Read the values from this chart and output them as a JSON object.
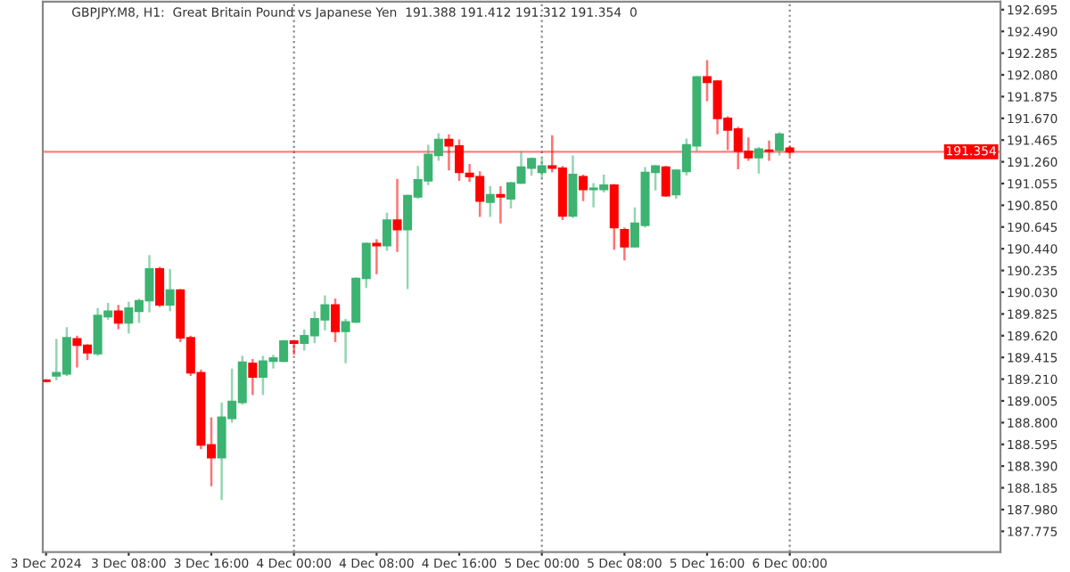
{
  "chart_data": {
    "type": "candlestick",
    "title": "GBPJPY.M8, H1:  Great Britain Pound vs Japanese Yen  191.388 191.412 191.312 191.354  0",
    "x": [
      "2024-12-03T00:00",
      "2024-12-03T01:00",
      "2024-12-03T02:00",
      "2024-12-03T03:00",
      "2024-12-03T04:00",
      "2024-12-03T05:00",
      "2024-12-03T06:00",
      "2024-12-03T07:00",
      "2024-12-03T08:00",
      "2024-12-03T09:00",
      "2024-12-03T10:00",
      "2024-12-03T11:00",
      "2024-12-03T12:00",
      "2024-12-03T13:00",
      "2024-12-03T14:00",
      "2024-12-03T15:00",
      "2024-12-03T16:00",
      "2024-12-03T17:00",
      "2024-12-03T18:00",
      "2024-12-03T19:00",
      "2024-12-03T20:00",
      "2024-12-03T21:00",
      "2024-12-03T22:00",
      "2024-12-03T23:00",
      "2024-12-04T00:00",
      "2024-12-04T01:00",
      "2024-12-04T02:00",
      "2024-12-04T03:00",
      "2024-12-04T04:00",
      "2024-12-04T05:00",
      "2024-12-04T06:00",
      "2024-12-04T07:00",
      "2024-12-04T08:00",
      "2024-12-04T09:00",
      "2024-12-04T10:00",
      "2024-12-04T11:00",
      "2024-12-04T12:00",
      "2024-12-04T13:00",
      "2024-12-04T14:00",
      "2024-12-04T15:00",
      "2024-12-04T16:00",
      "2024-12-04T17:00",
      "2024-12-04T18:00",
      "2024-12-04T19:00",
      "2024-12-04T20:00",
      "2024-12-04T21:00",
      "2024-12-04T22:00",
      "2024-12-04T23:00",
      "2024-12-05T00:00",
      "2024-12-05T01:00",
      "2024-12-05T02:00",
      "2024-12-05T03:00",
      "2024-12-05T04:00",
      "2024-12-05T05:00",
      "2024-12-05T06:00",
      "2024-12-05T07:00",
      "2024-12-05T08:00",
      "2024-12-05T09:00",
      "2024-12-05T10:00",
      "2024-12-05T11:00",
      "2024-12-05T12:00",
      "2024-12-05T13:00",
      "2024-12-05T14:00",
      "2024-12-05T15:00",
      "2024-12-05T16:00",
      "2024-12-05T17:00",
      "2024-12-05T18:00",
      "2024-12-05T19:00",
      "2024-12-05T20:00",
      "2024-12-05T21:00",
      "2024-12-05T22:00",
      "2024-12-05T23:00",
      "2024-12-06T00:00"
    ],
    "xlim": [
      "2024-12-02T23:41",
      "2024-12-06T20:24"
    ],
    "xticks": [
      {
        "value": "2024-12-03T00:00",
        "label": "3 Dec 2024"
      },
      {
        "value": "2024-12-03T08:00",
        "label": "3 Dec 08:00"
      },
      {
        "value": "2024-12-03T16:00",
        "label": "3 Dec 16:00"
      },
      {
        "value": "2024-12-04T00:00",
        "label": "4 Dec 00:00"
      },
      {
        "value": "2024-12-04T08:00",
        "label": "4 Dec 08:00"
      },
      {
        "value": "2024-12-04T16:00",
        "label": "4 Dec 16:00"
      },
      {
        "value": "2024-12-05T00:00",
        "label": "5 Dec 00:00"
      },
      {
        "value": "2024-12-05T08:00",
        "label": "5 Dec 08:00"
      },
      {
        "value": "2024-12-05T16:00",
        "label": "5 Dec 16:00"
      },
      {
        "value": "2024-12-06T00:00",
        "label": "6 Dec 00:00"
      }
    ],
    "ohlc": [
      [
        189.2,
        189.21,
        189.18,
        189.19
      ],
      [
        189.24,
        189.59,
        189.2,
        189.27
      ],
      [
        189.26,
        189.7,
        189.24,
        189.6
      ],
      [
        189.59,
        189.62,
        189.32,
        189.53
      ],
      [
        189.53,
        189.54,
        189.39,
        189.46
      ],
      [
        189.45,
        189.88,
        189.43,
        189.81
      ],
      [
        189.8,
        189.93,
        189.77,
        189.85
      ],
      [
        189.85,
        189.91,
        189.68,
        189.74
      ],
      [
        189.74,
        189.94,
        189.64,
        189.88
      ],
      [
        189.85,
        189.97,
        189.74,
        189.95
      ],
      [
        189.95,
        190.38,
        189.84,
        190.25
      ],
      [
        190.25,
        190.27,
        189.89,
        189.91
      ],
      [
        189.91,
        190.25,
        189.85,
        190.05
      ],
      [
        190.05,
        190.06,
        189.56,
        189.6
      ],
      [
        189.6,
        189.62,
        189.24,
        189.27
      ],
      [
        189.27,
        189.3,
        188.55,
        188.59
      ],
      [
        188.59,
        188.85,
        188.2,
        188.47
      ],
      [
        188.47,
        188.99,
        188.07,
        188.85
      ],
      [
        188.84,
        189.31,
        188.8,
        189.0
      ],
      [
        188.99,
        189.43,
        188.97,
        189.37
      ],
      [
        189.36,
        189.4,
        189.06,
        189.23
      ],
      [
        189.23,
        189.43,
        189.06,
        189.38
      ],
      [
        189.38,
        189.44,
        189.31,
        189.41
      ],
      [
        189.38,
        189.58,
        189.37,
        189.57
      ],
      [
        189.57,
        189.58,
        189.44,
        189.55
      ],
      [
        189.55,
        189.68,
        189.48,
        189.62
      ],
      [
        189.62,
        189.85,
        189.55,
        189.78
      ],
      [
        189.77,
        190.0,
        189.67,
        189.91
      ],
      [
        189.91,
        189.97,
        189.56,
        189.66
      ],
      [
        189.66,
        189.78,
        189.36,
        189.75
      ],
      [
        189.75,
        190.17,
        189.74,
        190.16
      ],
      [
        190.16,
        190.5,
        190.07,
        190.49
      ],
      [
        190.49,
        190.53,
        190.2,
        190.47
      ],
      [
        190.47,
        190.78,
        190.42,
        190.71
      ],
      [
        190.71,
        191.1,
        190.41,
        190.62
      ],
      [
        190.62,
        190.95,
        190.06,
        190.94
      ],
      [
        190.93,
        191.22,
        190.91,
        191.09
      ],
      [
        191.08,
        191.42,
        191.04,
        191.33
      ],
      [
        191.32,
        191.53,
        191.27,
        191.47
      ],
      [
        191.47,
        191.52,
        191.18,
        191.41
      ],
      [
        191.41,
        191.47,
        191.08,
        191.16
      ],
      [
        191.15,
        191.24,
        191.07,
        191.12
      ],
      [
        191.12,
        191.17,
        190.74,
        190.89
      ],
      [
        190.88,
        191.03,
        190.74,
        190.95
      ],
      [
        190.95,
        191.03,
        190.68,
        190.93
      ],
      [
        190.91,
        191.07,
        190.82,
        191.06
      ],
      [
        191.06,
        191.36,
        191.05,
        191.21
      ],
      [
        191.2,
        191.3,
        191.13,
        191.29
      ],
      [
        191.16,
        191.29,
        191.11,
        191.22
      ],
      [
        191.22,
        191.51,
        191.16,
        191.2
      ],
      [
        191.2,
        191.22,
        190.71,
        190.75
      ],
      [
        190.75,
        191.32,
        190.73,
        191.14
      ],
      [
        191.12,
        191.14,
        190.89,
        191.0
      ],
      [
        191.0,
        191.06,
        190.83,
        191.01
      ],
      [
        191.0,
        191.14,
        190.97,
        191.04
      ],
      [
        191.04,
        191.05,
        190.43,
        190.64
      ],
      [
        190.62,
        190.64,
        190.33,
        190.46
      ],
      [
        190.46,
        190.83,
        190.45,
        190.68
      ],
      [
        190.66,
        191.21,
        190.64,
        191.16
      ],
      [
        191.16,
        191.23,
        190.99,
        191.22
      ],
      [
        191.21,
        191.22,
        190.93,
        190.94
      ],
      [
        190.95,
        191.19,
        190.91,
        191.18
      ],
      [
        191.17,
        191.48,
        191.13,
        191.42
      ],
      [
        191.41,
        192.07,
        191.36,
        192.06
      ],
      [
        192.06,
        192.22,
        191.83,
        192.01
      ],
      [
        192.02,
        192.03,
        191.52,
        191.67
      ],
      [
        191.67,
        191.69,
        191.37,
        191.56
      ],
      [
        191.57,
        191.59,
        191.19,
        191.36
      ],
      [
        191.36,
        191.49,
        191.27,
        191.3
      ],
      [
        191.3,
        191.4,
        191.15,
        191.38
      ],
      [
        191.37,
        191.46,
        191.27,
        191.36
      ],
      [
        191.37,
        191.54,
        191.32,
        191.52
      ],
      [
        191.388,
        191.412,
        191.312,
        191.354
      ]
    ],
    "colors": [
      "#ff0000",
      "#3cb371",
      "#3cb371",
      "#ff0000",
      "#ff0000",
      "#3cb371",
      "#3cb371",
      "#ff0000",
      "#3cb371",
      "#3cb371",
      "#3cb371",
      "#ff0000",
      "#3cb371",
      "#ff0000",
      "#ff0000",
      "#ff0000",
      "#ff0000",
      "#3cb371",
      "#3cb371",
      "#3cb371",
      "#ff0000",
      "#3cb371",
      "#3cb371",
      "#3cb371",
      "#ff0000",
      "#3cb371",
      "#3cb371",
      "#3cb371",
      "#ff0000",
      "#3cb371",
      "#3cb371",
      "#3cb371",
      "#ff0000",
      "#3cb371",
      "#ff0000",
      "#3cb371",
      "#3cb371",
      "#3cb371",
      "#3cb371",
      "#ff0000",
      "#ff0000",
      "#ff0000",
      "#ff0000",
      "#3cb371",
      "#ff0000",
      "#3cb371",
      "#3cb371",
      "#3cb371",
      "#3cb371",
      "#ff0000",
      "#ff0000",
      "#3cb371",
      "#ff0000",
      "#3cb371",
      "#3cb371",
      "#ff0000",
      "#ff0000",
      "#3cb371",
      "#3cb371",
      "#3cb371",
      "#ff0000",
      "#3cb371",
      "#3cb371",
      "#3cb371",
      "#ff0000",
      "#ff0000",
      "#ff0000",
      "#ff0000",
      "#ff0000",
      "#3cb371",
      "#ff0000",
      "#3cb371",
      "#ff0000"
    ],
    "ylim": [
      187.58,
      192.77
    ],
    "yticks": [
      {
        "value": 187.775,
        "label": "187.775"
      },
      {
        "value": 187.98,
        "label": "187.980"
      },
      {
        "value": 188.185,
        "label": "188.185"
      },
      {
        "value": 188.39,
        "label": "188.390"
      },
      {
        "value": 188.595,
        "label": "188.595"
      },
      {
        "value": 188.8,
        "label": "188.800"
      },
      {
        "value": 189.005,
        "label": "189.005"
      },
      {
        "value": 189.21,
        "label": "189.210"
      },
      {
        "value": 189.415,
        "label": "189.415"
      },
      {
        "value": 189.62,
        "label": "189.620"
      },
      {
        "value": 189.825,
        "label": "189.825"
      },
      {
        "value": 190.03,
        "label": "190.030"
      },
      {
        "value": 190.235,
        "label": "190.235"
      },
      {
        "value": 190.44,
        "label": "190.440"
      },
      {
        "value": 190.645,
        "label": "190.645"
      },
      {
        "value": 190.85,
        "label": "190.850"
      },
      {
        "value": 191.055,
        "label": "191.055"
      },
      {
        "value": 191.26,
        "label": "191.260"
      },
      {
        "value": 191.465,
        "label": "191.465"
      },
      {
        "value": 191.67,
        "label": "191.670"
      },
      {
        "value": 191.875,
        "label": "191.875"
      },
      {
        "value": 192.08,
        "label": "192.080"
      },
      {
        "value": 192.285,
        "label": "192.285"
      },
      {
        "value": 192.49,
        "label": "192.490"
      },
      {
        "value": 192.695,
        "label": "192.695"
      }
    ],
    "ref_lines": [
      {
        "axis": "x",
        "value": "2024-12-04T00:00",
        "color": "#888888",
        "line_style": "dotted"
      },
      {
        "axis": "x",
        "value": "2024-12-05T00:00",
        "color": "#888888",
        "line_style": "dotted"
      },
      {
        "axis": "x",
        "value": "2024-12-06T00:00",
        "color": "#888888",
        "line_style": "dotted"
      },
      {
        "axis": "y",
        "value": 191.354,
        "label": "191.354",
        "color": "#ff0000",
        "line_style": "solid"
      }
    ],
    "grid": false
  }
}
